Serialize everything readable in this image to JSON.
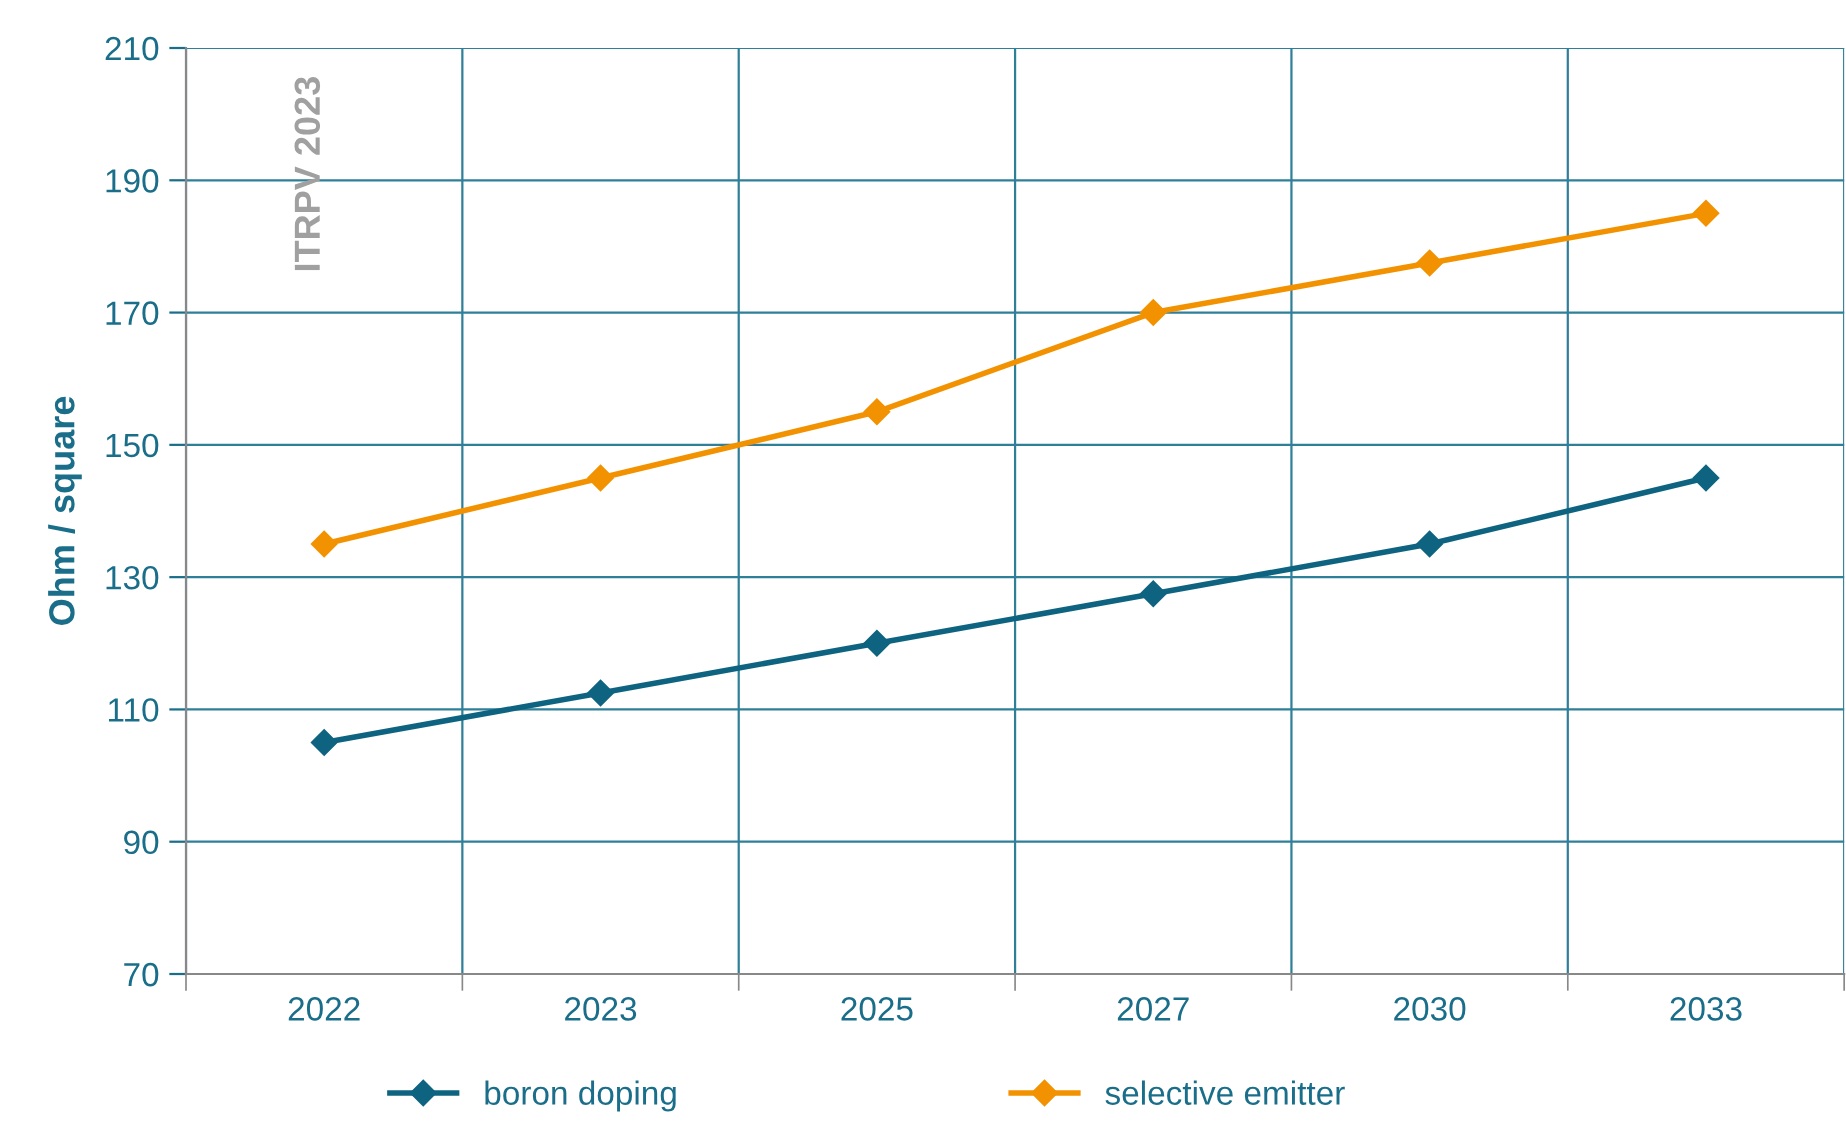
{
  "chart_data": {
    "type": "line",
    "ylabel": "Ohm / square",
    "categories": [
      "2022",
      "2023",
      "2025",
      "2027",
      "2030",
      "2033"
    ],
    "series": [
      {
        "name": "boron doping",
        "color": "#0e6480",
        "values": [
          105,
          112.5,
          120,
          127.5,
          135,
          145
        ]
      },
      {
        "name": "selective emitter",
        "color": "#f39200",
        "values": [
          135,
          145,
          155,
          170,
          177.5,
          185
        ]
      }
    ],
    "ylim": [
      70,
      210
    ],
    "yticks": [
      70,
      90,
      110,
      130,
      150,
      170,
      190,
      210
    ],
    "grid": true,
    "legend": "bottom",
    "marker": "diamond",
    "line_style": "solid",
    "annotations": [
      "ITRPV 2023"
    ]
  }
}
